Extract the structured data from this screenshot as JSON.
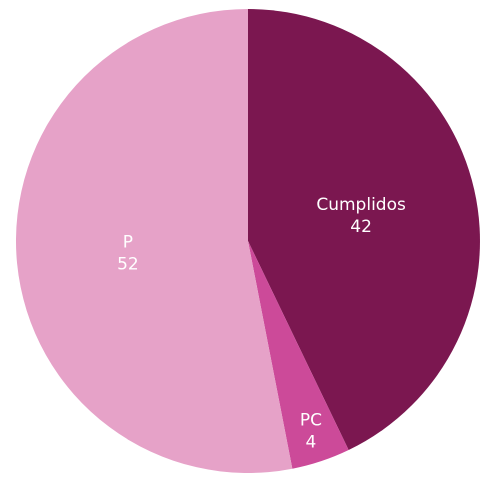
{
  "chart_data": {
    "type": "pie",
    "slices": [
      {
        "label": "Cumplidos",
        "value": 42,
        "value_label": "42",
        "color": "#7b1750"
      },
      {
        "label": "PC",
        "value": 4,
        "value_label": "4",
        "color": "#cc4a99"
      },
      {
        "label": "P",
        "value": 52,
        "value_label": "52",
        "color": "#e6a2c8"
      }
    ],
    "start": "top",
    "direction": "clockwise",
    "labels_inside": true,
    "label_color": "#ffffff"
  }
}
